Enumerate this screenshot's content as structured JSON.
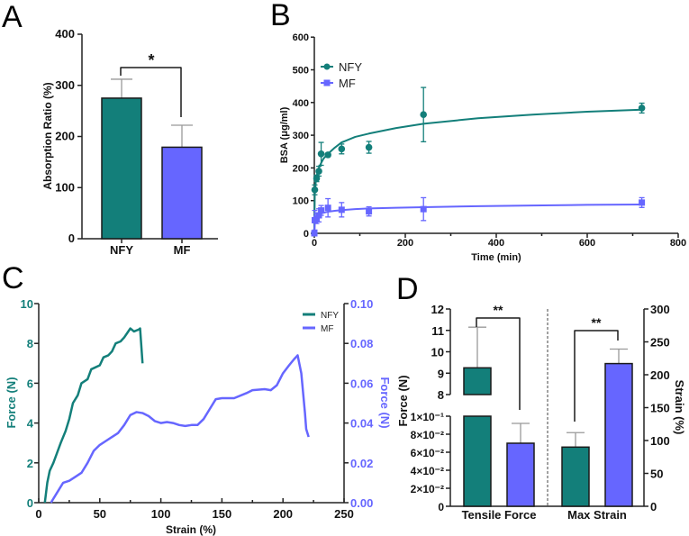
{
  "colors": {
    "nfy": "#137f7a",
    "mf": "#6666ff",
    "axis": "#222222",
    "error": "#999999"
  },
  "chart_data": [
    {
      "panel": "A",
      "type": "bar",
      "ylabel": "Absorption Ratio (%)",
      "ylim": [
        0,
        400
      ],
      "yticks": [
        "0",
        "100",
        "200",
        "300",
        "400"
      ],
      "categories": [
        "NFY",
        "MF"
      ],
      "values": [
        275,
        179
      ],
      "errors": [
        37,
        43
      ],
      "significance": "*"
    },
    {
      "panel": "B",
      "type": "scatter",
      "xlabel": "Time (min)",
      "ylabel": "BSA (μg/ml)",
      "xlim": [
        0,
        800
      ],
      "ylim": [
        0,
        600
      ],
      "xticks": [
        "0",
        "200",
        "400",
        "600",
        "800"
      ],
      "yticks": [
        "0",
        "100",
        "200",
        "300",
        "400",
        "500",
        "600"
      ],
      "legend": [
        "NFY",
        "MF"
      ],
      "legend_position": "top-left",
      "x": [
        0,
        1,
        5,
        10,
        15,
        30,
        60,
        120,
        240,
        720
      ],
      "series": [
        {
          "name": "NFY",
          "values": [
            0,
            133,
            168,
            190,
            243,
            240,
            258,
            263,
            363,
            383
          ],
          "errors": [
            0,
            15,
            10,
            15,
            35,
            5,
            15,
            18,
            83,
            15
          ],
          "fit_x": [
            0,
            1,
            3,
            5,
            10,
            15,
            20,
            30,
            45,
            60,
            90,
            120,
            180,
            240,
            360,
            480,
            600,
            720
          ],
          "fit_y": [
            0,
            120,
            155,
            175,
            200,
            215,
            228,
            243,
            262,
            278,
            295,
            305,
            322,
            335,
            352,
            363,
            372,
            378
          ]
        },
        {
          "name": "MF",
          "values": [
            0,
            40,
            45,
            55,
            70,
            78,
            72,
            67,
            74,
            94
          ],
          "errors": [
            0,
            30,
            15,
            20,
            15,
            28,
            22,
            14,
            35,
            15
          ],
          "fit_x": [
            0,
            1,
            3,
            5,
            10,
            15,
            20,
            30,
            45,
            60,
            90,
            120,
            180,
            240,
            360,
            480,
            600,
            720
          ],
          "fit_y": [
            0,
            30,
            42,
            48,
            56,
            60,
            63,
            66,
            69,
            71,
            74,
            76,
            78,
            80,
            83,
            85,
            87,
            88
          ]
        }
      ]
    },
    {
      "panel": "C",
      "type": "line",
      "xlabel": "Strain (%)",
      "ylabel": "Force (N)",
      "ylabel_right": "Force (N)",
      "xlim": [
        0,
        250
      ],
      "ylim": [
        0,
        10
      ],
      "ylim_right": [
        0,
        0.1
      ],
      "xticks": [
        "0",
        "50",
        "100",
        "150",
        "200",
        "250"
      ],
      "yticks": [
        "0",
        "2",
        "4",
        "6",
        "8",
        "10"
      ],
      "yticks_right": [
        "0.00",
        "0.02",
        "0.04",
        "0.06",
        "0.08",
        "0.10"
      ],
      "legend": [
        "NFY",
        "MF"
      ],
      "legend_position": "top-right",
      "series": [
        {
          "name": "NFY",
          "axis": "left",
          "x": [
            5,
            7,
            9,
            12,
            15,
            18,
            22,
            25,
            28,
            32,
            35,
            40,
            43,
            50,
            53,
            57,
            60,
            63,
            67,
            70,
            75,
            78,
            82,
            83,
            85
          ],
          "y": [
            0,
            1,
            1.6,
            2,
            2.5,
            3,
            3.6,
            4.2,
            5,
            5.4,
            6,
            6.2,
            6.7,
            6.9,
            7.3,
            7.4,
            7.6,
            8,
            8.1,
            8.3,
            8.75,
            8.6,
            8.7,
            8.75,
            7
          ]
        },
        {
          "name": "MF",
          "axis": "right",
          "x": [
            10,
            15,
            20,
            25,
            30,
            35,
            40,
            45,
            50,
            55,
            60,
            65,
            70,
            75,
            80,
            85,
            90,
            95,
            100,
            105,
            110,
            115,
            120,
            125,
            130,
            135,
            140,
            145,
            150,
            160,
            170,
            175,
            185,
            190,
            195,
            200,
            205,
            209,
            212,
            215,
            218,
            219,
            221
          ],
          "y": [
            0,
            0.005,
            0.01,
            0.011,
            0.013,
            0.015,
            0.02,
            0.026,
            0.029,
            0.031,
            0.033,
            0.035,
            0.039,
            0.044,
            0.0455,
            0.045,
            0.0435,
            0.041,
            0.04,
            0.0405,
            0.04,
            0.039,
            0.0385,
            0.039,
            0.039,
            0.042,
            0.047,
            0.052,
            0.0525,
            0.0525,
            0.055,
            0.0565,
            0.057,
            0.0565,
            0.059,
            0.065,
            0.069,
            0.072,
            0.074,
            0.065,
            0.045,
            0.037,
            0.033
          ]
        }
      ]
    },
    {
      "panel": "D",
      "type": "bar",
      "ylabel": "Force (N)",
      "ylabel_right": "Strain (%)",
      "categories": [
        "Tensile Force",
        "Max Strain"
      ],
      "yticks_upper": [
        "8",
        "9",
        "10",
        "11",
        "12"
      ],
      "yticks_lower": [
        "0",
        "2×10⁻²",
        "4×10⁻²",
        "6×10⁻²",
        "8×10⁻²",
        "1×10⁻¹"
      ],
      "yticks_right": [
        "0",
        "50",
        "100",
        "150",
        "200",
        "250",
        "300"
      ],
      "ylim_right": [
        0,
        300
      ],
      "series": [
        {
          "name": "NFY",
          "tensile_force": 9.25,
          "tensile_force_error": 1.9,
          "max_strain": 90,
          "max_strain_error": 22
        },
        {
          "name": "MF",
          "tensile_force": 0.07,
          "tensile_force_error": 0.022,
          "max_strain": 217,
          "max_strain_error": 22
        }
      ],
      "significance": [
        "**",
        "**"
      ]
    }
  ]
}
